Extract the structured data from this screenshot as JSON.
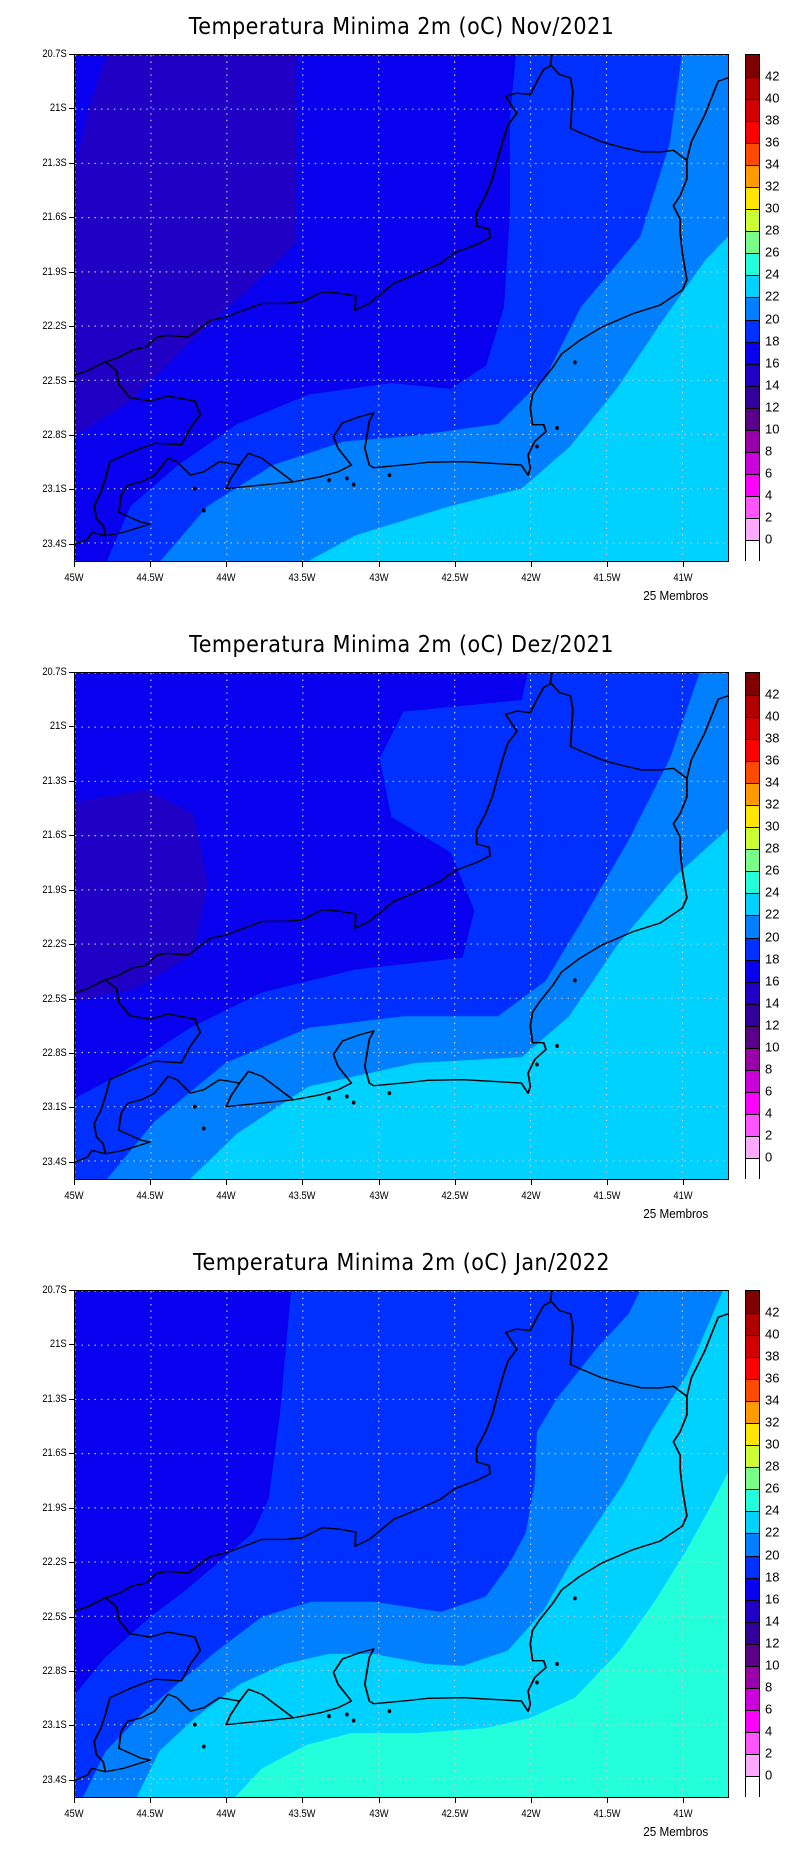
{
  "panels": [
    {
      "title": "Temperatura Minima 2m (oC) Nov/2021",
      "footer": "25 Membros"
    },
    {
      "title": "Temperatura Minima 2m (oC) Dez/2021",
      "footer": "25 Membros"
    },
    {
      "title": "Temperatura Minima 2m (oC) Jan/2022",
      "footer": "25 Membros"
    }
  ],
  "chart_data": {
    "type": "heatmap",
    "variable": "Temperatura Minima 2m (oC)",
    "months": [
      "Nov/2021",
      "Dez/2021",
      "Jan/2022"
    ],
    "xlim": [
      -45,
      -40.7
    ],
    "ylim": [
      -23.5,
      -20.7
    ],
    "x_ticks": [
      -45,
      -44.5,
      -44,
      -43.5,
      -43,
      -42.5,
      -42,
      -41.5,
      -41
    ],
    "x_tick_labels": [
      "45W",
      "44.5W",
      "44W",
      "43.5W",
      "43W",
      "42.5W",
      "42W",
      "41.5W",
      "41W"
    ],
    "y_ticks": [
      -20.7,
      -21,
      -21.3,
      -21.6,
      -21.9,
      -22.2,
      -22.5,
      -22.8,
      -23.1,
      -23.4
    ],
    "y_tick_labels": [
      "20.7S",
      "21S",
      "21.3S",
      "21.6S",
      "21.9S",
      "22.2S",
      "22.5S",
      "22.8S",
      "23.1S",
      "23.4S"
    ],
    "grid": true,
    "colorbar": {
      "labels": [
        "0",
        "2",
        "4",
        "6",
        "8",
        "10",
        "12",
        "14",
        "16",
        "18",
        "20",
        "22",
        "24",
        "26",
        "28",
        "30",
        "32",
        "34",
        "36",
        "38",
        "40",
        "42"
      ],
      "colors": [
        "#ffffff",
        "#ffaaff",
        "#ff55ff",
        "#ff00ff",
        "#cc00dd",
        "#9900aa",
        "#5a0088",
        "#320099",
        "#2000c4",
        "#0800ee",
        "#0030ff",
        "#0080ff",
        "#00d2ff",
        "#22ffda",
        "#77ff88",
        "#ccff33",
        "#ffe600",
        "#ff9a00",
        "#ff4a00",
        "#ff0000",
        "#d20000",
        "#b00000",
        "#7f0000"
      ]
    },
    "ranges_per_month": {
      "Nov/2021": {
        "min_class": "14-16",
        "max_class": "22-24"
      },
      "Dez/2021": {
        "min_class": "14-16",
        "max_class": "22-24"
      },
      "Jan/2022": {
        "min_class": "16-18",
        "max_class": "24-26"
      }
    }
  }
}
